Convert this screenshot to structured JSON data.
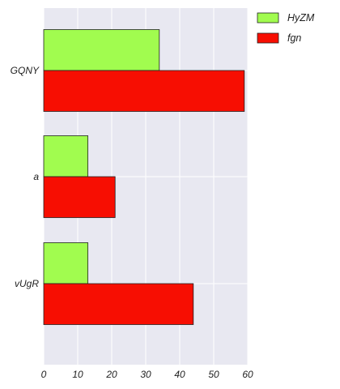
{
  "chart_data": {
    "type": "bar",
    "orientation": "horizontal",
    "categories": [
      "GQNY",
      "a",
      "vUgR"
    ],
    "series": [
      {
        "name": "HyZM",
        "values": [
          34,
          13,
          13
        ],
        "color": "#a1fc4f"
      },
      {
        "name": "fgn",
        "values": [
          59,
          21,
          44
        ],
        "color": "#f70e02"
      }
    ],
    "xlim": [
      0,
      60
    ],
    "xticks": [
      0,
      10,
      20,
      30,
      40,
      50,
      60
    ],
    "grid": true,
    "legend": "top-right",
    "background": "#e8e8f1"
  }
}
